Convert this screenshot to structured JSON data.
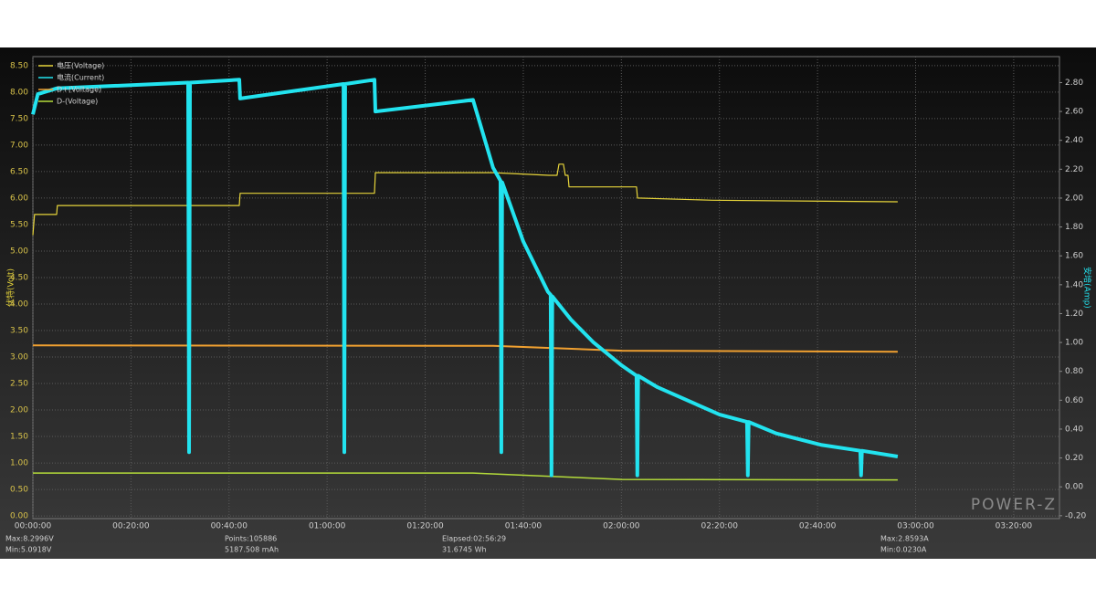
{
  "chart_data": {
    "type": "line",
    "ylabel": "伏特(Volt)",
    "y2label": "安培(Amp)",
    "watermark": "POWER-Z",
    "stats": [
      "Max:8.2996V",
      "Min:5.0918V",
      "Points:105886",
      "5187.508 mAh",
      "Elapsed:02:56:29",
      "31.6745 Wh",
      "Max:2.8593A",
      "Min:0.0230A"
    ],
    "xlim": [
      0,
      12560
    ],
    "xticks": [
      {
        "value": 0,
        "label": "00:00:00"
      },
      {
        "value": 1200,
        "label": "00:20:00"
      },
      {
        "value": 2400,
        "label": "00:40:00"
      },
      {
        "value": 3600,
        "label": "01:00:00"
      },
      {
        "value": 4800,
        "label": "01:20:00"
      },
      {
        "value": 6000,
        "label": "01:40:00"
      },
      {
        "value": 7200,
        "label": "02:00:00"
      },
      {
        "value": 8400,
        "label": "02:20:00"
      },
      {
        "value": 9600,
        "label": "02:40:00"
      },
      {
        "value": 10800,
        "label": "03:00:00"
      },
      {
        "value": 12000,
        "label": "03:20:00"
      }
    ],
    "ylim": [
      -0.05,
      8.67
    ],
    "yticks": [
      {
        "value": 0,
        "label": "0.00"
      },
      {
        "value": 0.5,
        "label": "0.50"
      },
      {
        "value": 1,
        "label": "1.00"
      },
      {
        "value": 1.5,
        "label": "1.50"
      },
      {
        "value": 2,
        "label": "2.00"
      },
      {
        "value": 2.5,
        "label": "2.50"
      },
      {
        "value": 3,
        "label": "3.00"
      },
      {
        "value": 3.5,
        "label": "3.50"
      },
      {
        "value": 4,
        "label": "4.00"
      },
      {
        "value": 4.5,
        "label": "4.50"
      },
      {
        "value": 5,
        "label": "5.00"
      },
      {
        "value": 5.5,
        "label": "5.50"
      },
      {
        "value": 6,
        "label": "6.00"
      },
      {
        "value": 6.5,
        "label": "6.50"
      },
      {
        "value": 7,
        "label": "7.00"
      },
      {
        "value": 7.5,
        "label": "7.50"
      },
      {
        "value": 8,
        "label": "8.00"
      },
      {
        "value": 8.5,
        "label": "8.50"
      }
    ],
    "y2lim": [
      -0.22,
      2.98
    ],
    "y2ticks": [
      {
        "value": -0.2,
        "label": "-0.20"
      },
      {
        "value": 0,
        "label": "0.00"
      },
      {
        "value": 0.2,
        "label": "0.20"
      },
      {
        "value": 0.4,
        "label": "0.40"
      },
      {
        "value": 0.6,
        "label": "0.60"
      },
      {
        "value": 0.8,
        "label": "0.80"
      },
      {
        "value": 1,
        "label": "1.00"
      },
      {
        "value": 1.2,
        "label": "1.20"
      },
      {
        "value": 1.4,
        "label": "1.40"
      },
      {
        "value": 1.6,
        "label": "1.60"
      },
      {
        "value": 1.8,
        "label": "1.80"
      },
      {
        "value": 2,
        "label": "2.00"
      },
      {
        "value": 2.2,
        "label": "2.20"
      },
      {
        "value": 2.4,
        "label": "2.40"
      },
      {
        "value": 2.6,
        "label": "2.60"
      },
      {
        "value": 2.8,
        "label": "2.80"
      }
    ],
    "grid": true,
    "legend": "top-left",
    "series": [
      {
        "name": "电压(Voltage)",
        "color": "#e6d43a",
        "width": 1.2,
        "x": [
          0,
          20,
          290,
          300,
          2525,
          2535,
          4179,
          4190,
          5631,
          6313,
          6413,
          6436,
          6491,
          6514,
          6547,
          6559,
          7385,
          7397,
          8313,
          10581
        ],
        "values": [
          5.3,
          5.69,
          5.69,
          5.86,
          5.86,
          6.09,
          6.09,
          6.48,
          6.48,
          6.43,
          6.43,
          6.64,
          6.64,
          6.43,
          6.43,
          6.21,
          6.21,
          6.0,
          5.96,
          5.93
        ]
      },
      {
        "name": "电流(Current)",
        "color": "#22e3ef",
        "width": 4,
        "axis": "y2",
        "x": [
          0,
          60,
          290,
          1900,
          1911,
          1922,
          2525,
          2535,
          3800,
          3810,
          3820,
          4179,
          4190,
          5385,
          5631,
          5721,
          5731,
          5741,
          6000,
          6302,
          6335,
          6345,
          6355,
          6581,
          6860,
          7206,
          7385,
          7395,
          7405,
          7642,
          8402,
          8737,
          8747,
          8757,
          9095,
          9654,
          10123,
          10133,
          10143,
          10581
        ],
        "values": [
          2.58,
          2.72,
          2.76,
          2.8,
          0.24,
          2.8,
          2.82,
          2.69,
          2.79,
          0.24,
          2.79,
          2.82,
          2.6,
          2.68,
          2.21,
          2.12,
          0.24,
          2.11,
          1.7,
          1.35,
          1.33,
          0.08,
          1.32,
          1.16,
          1.0,
          0.84,
          0.77,
          0.08,
          0.77,
          0.69,
          0.5,
          0.45,
          0.08,
          0.45,
          0.37,
          0.29,
          0.25,
          0.08,
          0.25,
          0.21
        ]
      },
      {
        "name": "D+(Voltage)",
        "color": "#f0a030",
        "width": 2,
        "x": [
          0,
          5631,
          7206,
          10581
        ],
        "values": [
          3.22,
          3.21,
          3.12,
          3.1
        ]
      },
      {
        "name": "D-(Voltage)",
        "color": "#b4dc3a",
        "width": 1.5,
        "x": [
          0,
          5385,
          7206,
          10581
        ],
        "values": [
          0.81,
          0.81,
          0.69,
          0.68
        ]
      }
    ]
  }
}
